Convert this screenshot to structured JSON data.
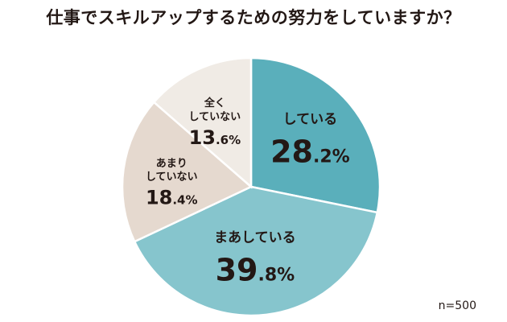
{
  "title": "仕事でスキルアップするための努力をしていますか？",
  "sample_size": "n=500",
  "chart_data": {
    "type": "pie",
    "title": "仕事でスキルアップするための努力をしていますか？",
    "unit": "%",
    "slices": [
      {
        "label_lines": [
          "している"
        ],
        "value": 28.2,
        "int": "28",
        "dec": ".2",
        "color": "#5aafbb"
      },
      {
        "label_lines": [
          "まあしている"
        ],
        "value": 39.8,
        "int": "39",
        "dec": ".8",
        "color": "#86c5cd"
      },
      {
        "label_lines": [
          "あまり",
          "していない"
        ],
        "value": 18.4,
        "int": "18",
        "dec": ".4",
        "color": "#e5d9cf"
      },
      {
        "label_lines": [
          "全く",
          "していない"
        ],
        "value": 13.6,
        "int": "13",
        "dec": ".6",
        "color": "#f0ebe5"
      }
    ]
  }
}
